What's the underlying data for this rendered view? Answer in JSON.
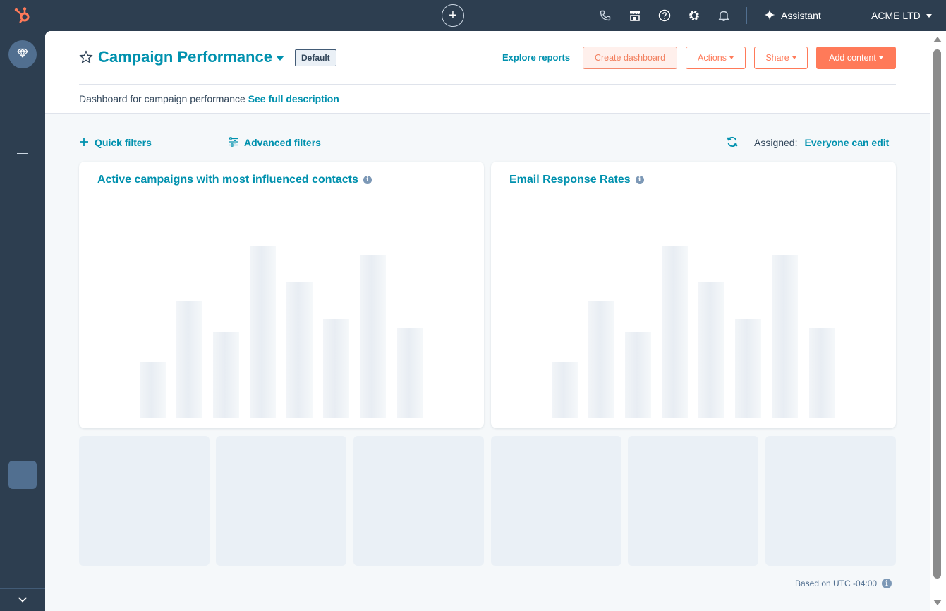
{
  "topnav": {
    "plus": "+",
    "assistant_label": "Assistant",
    "account_label": "ACME LTD"
  },
  "header": {
    "title": "Campaign Performance",
    "badge": "Default",
    "explore_label": "Explore reports",
    "create_label": "Create dashboard",
    "actions_label": "Actions",
    "share_label": "Share",
    "add_label": "Add content",
    "description": "Dashboard for campaign performance",
    "description_link": "See full description"
  },
  "filters": {
    "quick_label": "Quick filters",
    "advanced_label": "Advanced filters",
    "assigned_label": "Assigned:",
    "assigned_value": "Everyone can edit"
  },
  "cards": [
    {
      "title": "Active campaigns with most influenced contacts"
    },
    {
      "title": "Email Response Rates"
    }
  ],
  "footer": {
    "timezone_note": "Based on UTC -04:00"
  },
  "colors": {
    "nav_bg": "#2d3e50",
    "link": "#0091ae",
    "accent": "#ff7a59"
  }
}
